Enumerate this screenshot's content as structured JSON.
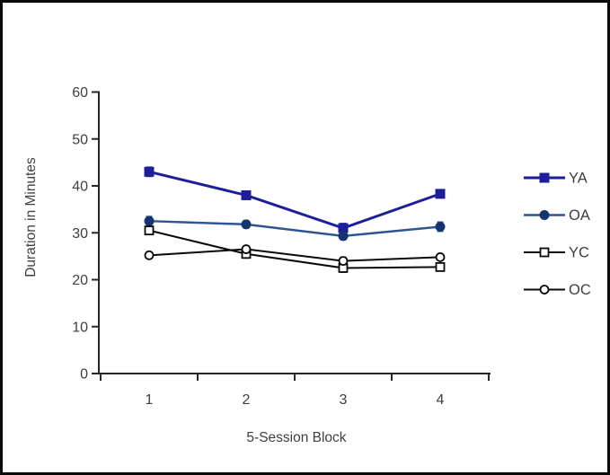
{
  "figure": {
    "background_color": "#ffffff",
    "border_color": "#0a0a0a",
    "text_color": "#404040",
    "axis_color": "#262626"
  },
  "chart_data": {
    "type": "line",
    "title": "",
    "xlabel": "5-Session Block",
    "ylabel": "Duration in Minutes",
    "categories": [
      "1",
      "2",
      "3",
      "4"
    ],
    "ylim": [
      0,
      60
    ],
    "yticks": [
      0,
      10,
      20,
      30,
      40,
      50,
      60
    ],
    "grid": false,
    "legend_position": "right",
    "error_bars": true,
    "series": [
      {
        "name": "YA",
        "values": [
          43,
          38,
          31,
          38.3
        ],
        "errors": [
          1,
          0.6,
          1,
          0.8
        ],
        "marker": "filled-square",
        "line_color": "#1E1E99",
        "marker_color": "#1E1E99",
        "line_width": 3
      },
      {
        "name": "OA",
        "values": [
          32.5,
          31.8,
          29.3,
          31.3
        ],
        "errors": [
          1,
          0.8,
          0.8,
          1
        ],
        "marker": "filled-circle",
        "line_color": "#2E5591",
        "marker_color": "#16356E",
        "line_width": 2.5
      },
      {
        "name": "YC",
        "values": [
          30.5,
          25.5,
          22.5,
          22.7
        ],
        "errors": [
          0.8,
          0.9,
          0.9,
          0.6
        ],
        "marker": "open-square",
        "line_color": "#0a0a0a",
        "marker_color": "#ffffff",
        "line_width": 2
      },
      {
        "name": "OC",
        "values": [
          25.2,
          26.5,
          24,
          24.8
        ],
        "errors": [
          0.6,
          0.7,
          0.8,
          0.6
        ],
        "marker": "open-circle",
        "line_color": "#0a0a0a",
        "marker_color": "#ffffff",
        "line_width": 2
      }
    ]
  }
}
